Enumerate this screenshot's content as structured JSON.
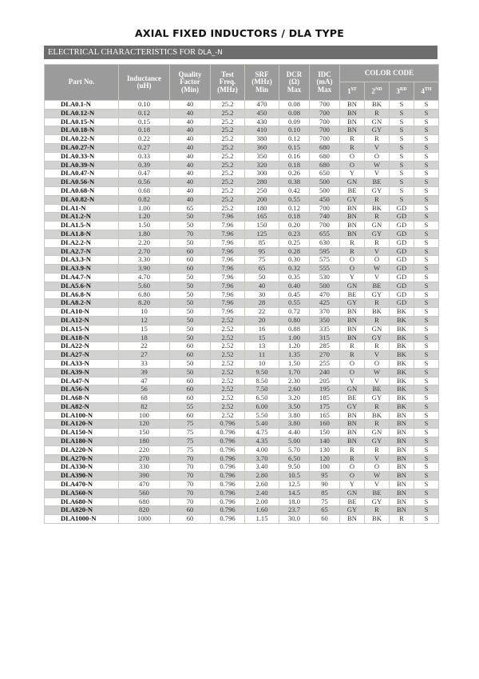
{
  "title": "AXIAL FIXED INDUCTORS / DLA TYPE",
  "section": {
    "label": "ELECTRICAL CHARACTERISTICS FOR",
    "suffix": "DLA_-N"
  },
  "headers": {
    "part": "Part No.",
    "inductance": [
      "Inductance",
      "(uH)"
    ],
    "q": [
      "Quality",
      "Factor",
      "(Min)"
    ],
    "test": [
      "Test",
      "Freq.",
      "(MHz)"
    ],
    "srf": [
      "SRF",
      "(MHz)",
      "Min"
    ],
    "dcr": [
      "DCR",
      "(Ω)",
      "Max"
    ],
    "idc": [
      "IDC",
      "(mA)",
      "Max"
    ],
    "color_code": "COLOR CODE",
    "bands": [
      [
        "1",
        "ST"
      ],
      [
        "2",
        "ND"
      ],
      [
        "3",
        "RD"
      ],
      [
        "4",
        "TH"
      ]
    ]
  },
  "colors": {
    "banner": "#6d6d6d",
    "header": "#9b9b9b",
    "row_alt": "#d2d2d2"
  },
  "rows": [
    [
      "DLA0.1-N",
      "0.10",
      "40",
      "25.2",
      "470",
      "0.08",
      "700",
      "BN",
      "BK",
      "S",
      "S"
    ],
    [
      "DLA0.12-N",
      "0.12",
      "40",
      "25.2",
      "450",
      "0.08",
      "700",
      "BN",
      "R",
      "S",
      "S"
    ],
    [
      "DLA0.15-N",
      "0.15",
      "40",
      "25.2",
      "430",
      "0.09",
      "700",
      "BN",
      "GN",
      "S",
      "S"
    ],
    [
      "DLA0.18-N",
      "0.18",
      "40",
      "25.2",
      "410",
      "0.10",
      "700",
      "BN",
      "GY",
      "S",
      "S"
    ],
    [
      "DLA0.22-N",
      "0.22",
      "40",
      "25.2",
      "380",
      "0.12",
      "700",
      "R",
      "R",
      "S",
      "S"
    ],
    [
      "DLA0.27-N",
      "0.27",
      "40",
      "25.2",
      "360",
      "0.15",
      "680",
      "R",
      "V",
      "S",
      "S"
    ],
    [
      "DLA0.33-N",
      "0.33",
      "40",
      "25.2",
      "350",
      "0.16",
      "680",
      "O",
      "O",
      "S",
      "S"
    ],
    [
      "DLA0.39-N",
      "0.39",
      "40",
      "25.2",
      "320",
      "0.18",
      "680",
      "O",
      "W",
      "S",
      "S"
    ],
    [
      "DLA0.47-N",
      "0.47",
      "40",
      "25.2",
      "300",
      "0.26",
      "650",
      "Y",
      "V",
      "S",
      "S"
    ],
    [
      "DLA0.56-N",
      "0.56",
      "40",
      "25.2",
      "280",
      "0.38",
      "500",
      "GN",
      "BE",
      "S",
      "S"
    ],
    [
      "DLA0.68-N",
      "0.68",
      "40",
      "25.2",
      "250",
      "0.42",
      "500",
      "BE",
      "GY",
      "S",
      "S"
    ],
    [
      "DLA0.82-N",
      "0.82",
      "40",
      "25.2",
      "200",
      "0.55",
      "450",
      "GY",
      "R",
      "S",
      "S"
    ],
    [
      "DLA1-N",
      "1.00",
      "65",
      "25.2",
      "180",
      "0.12",
      "700",
      "BN",
      "BK",
      "GD",
      "S"
    ],
    [
      "DLA1.2-N",
      "1.20",
      "50",
      "7.96",
      "165",
      "0.18",
      "740",
      "BN",
      "R",
      "GD",
      "S"
    ],
    [
      "DLA1.5-N",
      "1.50",
      "50",
      "7.96",
      "150",
      "0.20",
      "700",
      "BN",
      "GN",
      "GD",
      "S"
    ],
    [
      "DLA1.8-N",
      "1.80",
      "70",
      "7.96",
      "125",
      "0.23",
      "655",
      "BN",
      "GY",
      "GD",
      "S"
    ],
    [
      "DLA2.2-N",
      "2.20",
      "50",
      "7.96",
      "85",
      "0.25",
      "630",
      "R",
      "R",
      "GD",
      "S"
    ],
    [
      "DLA2.7-N",
      "2.70",
      "60",
      "7.96",
      "95",
      "0.28",
      "595",
      "R",
      "V",
      "GD",
      "S"
    ],
    [
      "DLA3.3-N",
      "3.30",
      "60",
      "7.96",
      "75",
      "0.30",
      "575",
      "O",
      "O",
      "GD",
      "S"
    ],
    [
      "DLA3.9-N",
      "3.90",
      "60",
      "7.96",
      "65",
      "0.32",
      "555",
      "O",
      "W",
      "GD",
      "S"
    ],
    [
      "DLA4.7-N",
      "4.70",
      "50",
      "7.96",
      "50",
      "0.35",
      "530",
      "Y",
      "V",
      "GD",
      "S"
    ],
    [
      "DLA5.6-N",
      "5.60",
      "50",
      "7.96",
      "40",
      "0.40",
      "500",
      "GN",
      "BE",
      "GD",
      "S"
    ],
    [
      "DLA6.8-N",
      "6.80",
      "50",
      "7.96",
      "30",
      "0.45",
      "470",
      "BE",
      "GY",
      "GD",
      "S"
    ],
    [
      "DLA8.2-N",
      "8.20",
      "50",
      "7.96",
      "28",
      "0.55",
      "425",
      "GY",
      "R",
      "GD",
      "S"
    ],
    [
      "DLA10-N",
      "10",
      "50",
      "7.96",
      "22",
      "0.72",
      "370",
      "BN",
      "BK",
      "BK",
      "S"
    ],
    [
      "DLA12-N",
      "12",
      "50",
      "2.52",
      "20",
      "0.80",
      "350",
      "BN",
      "R",
      "BK",
      "S"
    ],
    [
      "DLA15-N",
      "15",
      "50",
      "2.52",
      "16",
      "0.88",
      "335",
      "BN",
      "GN",
      "BK",
      "S"
    ],
    [
      "DLA18-N",
      "18",
      "50",
      "2.52",
      "15",
      "1.00",
      "315",
      "BN",
      "GY",
      "BK",
      "S"
    ],
    [
      "DLA22-N",
      "22",
      "60",
      "2.52",
      "13",
      "1.20",
      "285",
      "R",
      "R",
      "BK",
      "S"
    ],
    [
      "DLA27-N",
      "27",
      "60",
      "2.52",
      "11",
      "1.35",
      "270",
      "R",
      "V",
      "BK",
      "S"
    ],
    [
      "DLA33-N",
      "33",
      "50",
      "2.52",
      "10",
      "1.50",
      "255",
      "O",
      "O",
      "BK",
      "S"
    ],
    [
      "DLA39-N",
      "39",
      "50",
      "2.52",
      "9.50",
      "1.70",
      "240",
      "O",
      "W",
      "BK",
      "S"
    ],
    [
      "DLA47-N",
      "47",
      "60",
      "2.52",
      "8.50",
      "2.30",
      "205",
      "Y",
      "V",
      "BK",
      "S"
    ],
    [
      "DLA56-N",
      "56",
      "60",
      "2.52",
      "7.50",
      "2.60",
      "195",
      "GN",
      "BE",
      "BK",
      "S"
    ],
    [
      "DLA68-N",
      "68",
      "60",
      "2.52",
      "6.50",
      "3.20",
      "185",
      "BE",
      "GY",
      "BK",
      "S"
    ],
    [
      "DLA82-N",
      "82",
      "55",
      "2.52",
      "6.00",
      "3.50",
      "175",
      "GY",
      "R",
      "BK",
      "S"
    ],
    [
      "DLA100-N",
      "100",
      "60",
      "2.52",
      "5.50",
      "3.80",
      "165",
      "BN",
      "BK",
      "BN",
      "S"
    ],
    [
      "DLA120-N",
      "120",
      "75",
      "0.796",
      "5.40",
      "3.80",
      "160",
      "BN",
      "R",
      "BN",
      "S"
    ],
    [
      "DLA150-N",
      "150",
      "75",
      "0.796",
      "4.75",
      "4.40",
      "150",
      "BN",
      "GN",
      "BN",
      "S"
    ],
    [
      "DLA180-N",
      "180",
      "75",
      "0.796",
      "4.35",
      "5.00",
      "140",
      "BN",
      "GY",
      "BN",
      "S"
    ],
    [
      "DLA220-N",
      "220",
      "75",
      "0.796",
      "4.00",
      "5.70",
      "130",
      "R",
      "R",
      "BN",
      "S"
    ],
    [
      "DLA270-N",
      "270",
      "70",
      "0.796",
      "3.70",
      "6.50",
      "120",
      "R",
      "V",
      "BN",
      "S"
    ],
    [
      "DLA330-N",
      "330",
      "70",
      "0.796",
      "3.40",
      "9.50",
      "100",
      "O",
      "O",
      "BN",
      "S"
    ],
    [
      "DLA390-N",
      "390",
      "70",
      "0.796",
      "2.80",
      "10.5",
      "95",
      "O",
      "W",
      "BN",
      "S"
    ],
    [
      "DLA470-N",
      "470",
      "70",
      "0.796",
      "2.60",
      "12.5",
      "90",
      "Y",
      "V",
      "BN",
      "S"
    ],
    [
      "DLA560-N",
      "560",
      "70",
      "0.796",
      "2.40",
      "14.5",
      "85",
      "GN",
      "BE",
      "BN",
      "S"
    ],
    [
      "DLA680-N",
      "680",
      "70",
      "0.796",
      "2.00",
      "18.0",
      "75",
      "BE",
      "GY",
      "BN",
      "S"
    ],
    [
      "DLA820-N",
      "820",
      "60",
      "0.796",
      "1.60",
      "23.7",
      "65",
      "GY",
      "R",
      "BN",
      "S"
    ],
    [
      "DLA1000-N",
      "1000",
      "60",
      "0.796",
      "1.15",
      "30.0",
      "60",
      "BN",
      "BK",
      "R",
      "S"
    ]
  ]
}
